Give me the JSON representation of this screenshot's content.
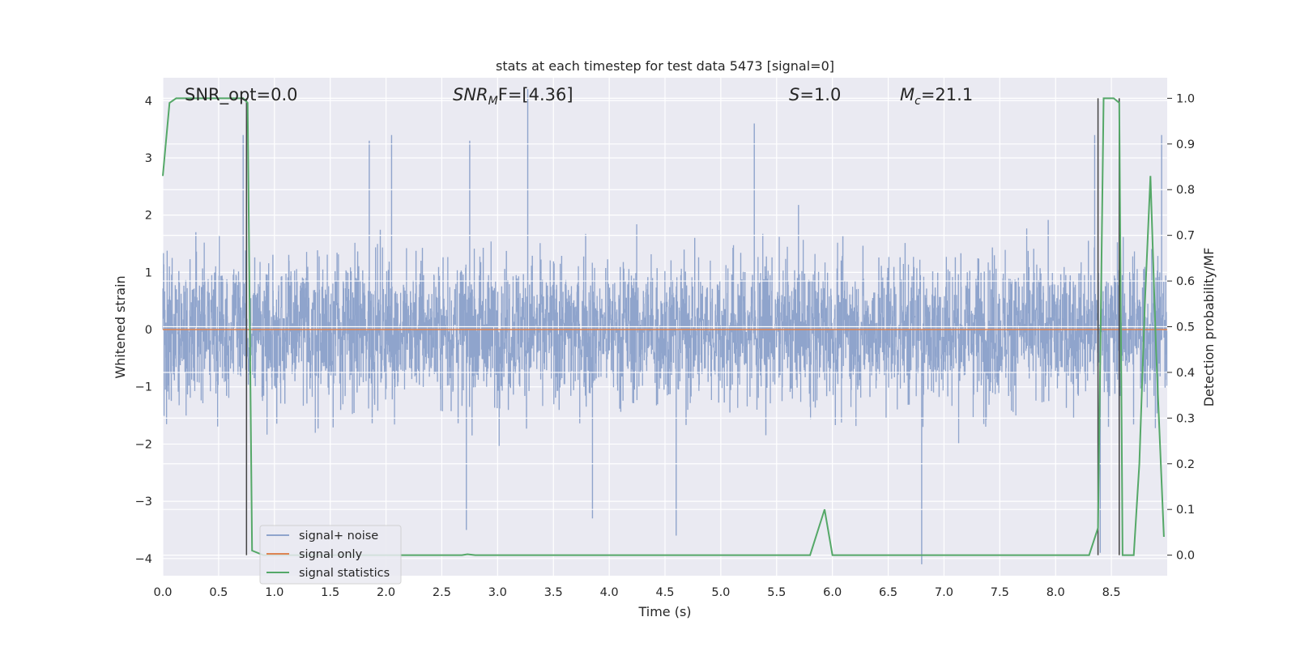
{
  "chart_data": {
    "type": "line",
    "title": "stats at each timestep for test data 5473 [signal=0]",
    "xlabel": "Time (s)",
    "ylabel_left": "Whitened strain",
    "ylabel_right": "Detection probability/MF",
    "xlim": [
      0,
      9
    ],
    "ylim_left": [
      -4.3,
      4.4
    ],
    "ylim_right": [
      -0.045,
      1.045
    ],
    "x_ticks": [
      "0.0",
      "0.5",
      "1.0",
      "1.5",
      "2.0",
      "2.5",
      "3.0",
      "3.5",
      "4.0",
      "4.5",
      "5.0",
      "5.5",
      "6.0",
      "6.5",
      "7.0",
      "7.5",
      "8.0",
      "8.5"
    ],
    "y_left_ticks": [
      "4",
      "3",
      "2",
      "1",
      "0",
      "−1",
      "−2",
      "−3",
      "−4"
    ],
    "y_right_ticks": [
      "1.0",
      "0.9",
      "0.8",
      "0.7",
      "0.6",
      "0.5",
      "0.4",
      "0.3",
      "0.2",
      "0.1",
      "0.0"
    ],
    "grid": true,
    "legend_position": "lower-left",
    "annotations": {
      "snr_opt": "SNR_opt=0.0",
      "snr_mf_name": "SNR",
      "snr_mf_sub": "M",
      "snr_mf_rest": "F=[4.36]",
      "s_name": "S",
      "s_rest": "=1.0",
      "mc_name": "M",
      "mc_sub": "c",
      "mc_rest": "=21.1"
    },
    "series": [
      {
        "name": "signal+ noise",
        "color": "#8fa4cc",
        "description_values": {
          "typical_envelope": [
            -1.6,
            1.6
          ],
          "peaks": [
            {
              "x": 0.72,
              "y": 3.4
            },
            {
              "x": 1.85,
              "y": 3.3
            },
            {
              "x": 2.05,
              "y": 3.4
            },
            {
              "x": 2.75,
              "y": 3.3
            },
            {
              "x": 3.27,
              "y": 4.2
            },
            {
              "x": 5.3,
              "y": 3.6
            },
            {
              "x": 8.35,
              "y": 3.4
            },
            {
              "x": 8.95,
              "y": 3.4
            },
            {
              "x": 2.72,
              "y": -3.5
            },
            {
              "x": 3.85,
              "y": -3.3
            },
            {
              "x": 4.6,
              "y": -3.6
            },
            {
              "x": 6.8,
              "y": -4.1
            },
            {
              "x": 8.4,
              "y": -3.9
            }
          ]
        }
      },
      {
        "name": "signal only",
        "color": "#dd8452",
        "x": [
          0,
          9
        ],
        "y": [
          0,
          0
        ]
      },
      {
        "name": "signal statistics",
        "color": "#55a868",
        "axis": "right",
        "x": [
          0.0,
          0.06,
          0.12,
          0.2,
          0.4,
          0.6,
          0.72,
          0.76,
          0.8,
          0.9,
          1.0,
          1.5,
          2.0,
          2.5,
          2.68,
          2.73,
          2.8,
          2.9,
          3.5,
          4.0,
          4.5,
          5.0,
          5.5,
          5.8,
          5.93,
          6.0,
          6.5,
          7.0,
          7.5,
          8.0,
          8.3,
          8.38,
          8.43,
          8.47,
          8.52,
          8.57,
          8.6,
          8.65,
          8.7,
          8.75,
          8.8,
          8.85,
          8.9,
          8.97
        ],
        "y": [
          0.83,
          0.99,
          1.0,
          1.0,
          1.0,
          1.0,
          1.0,
          0.99,
          0.01,
          0.0,
          0.0,
          0.0,
          0.0,
          0.0,
          0.0,
          0.002,
          0.0,
          0.0,
          0.0,
          0.0,
          0.0,
          0.0,
          0.0,
          0.0,
          0.1,
          0.0,
          0.0,
          0.0,
          0.0,
          0.0,
          0.0,
          0.06,
          1.0,
          1.0,
          1.0,
          0.99,
          0.0,
          0.0,
          0.0,
          0.2,
          0.55,
          0.83,
          0.45,
          0.04
        ]
      }
    ],
    "vertical_markers": [
      0.75,
      8.38,
      8.57
    ]
  }
}
